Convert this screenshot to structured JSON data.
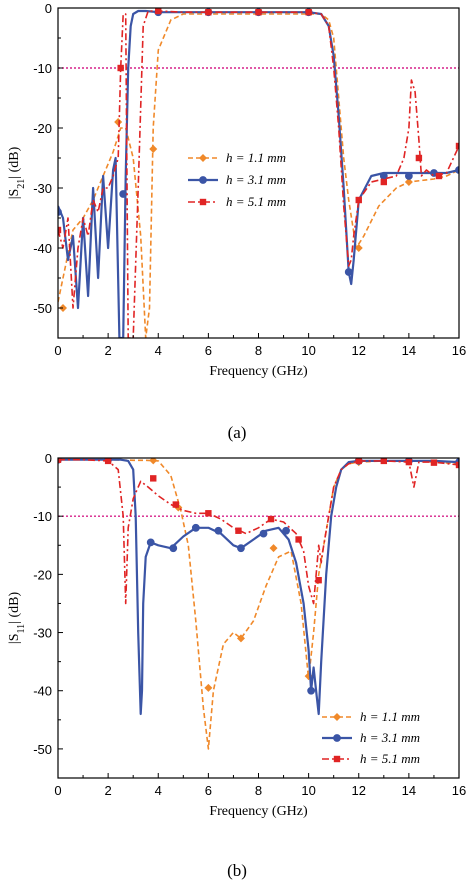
{
  "charts": [
    {
      "caption": "(a)",
      "chart_data": {
        "type": "line",
        "xlabel": "Frequency (GHz)",
        "ylabel_main": "|S",
        "ylabel_sub": "21",
        "ylabel_tail": "| (dB)",
        "xlim": [
          0,
          16
        ],
        "ylim": [
          -55,
          0
        ],
        "xticks": [
          0,
          2,
          4,
          6,
          8,
          10,
          12,
          14,
          16
        ],
        "yticks": [
          0,
          -10,
          -20,
          -30,
          -40,
          -50
        ],
        "reference_line": {
          "y": -10,
          "color": "#d6208a"
        },
        "legend_position": "center-right",
        "series": [
          {
            "name": "h = 1.1 mm",
            "color": "#f0892a",
            "style": "dashed",
            "marker": "diamond",
            "x": [
              0,
              0.3,
              0.6,
              1.0,
              1.4,
              1.8,
              2.2,
              2.5,
              2.7,
              3.0,
              3.3,
              3.5,
              3.65,
              3.8,
              4.0,
              4.5,
              5.0,
              6,
              7,
              8,
              9,
              10,
              10.5,
              10.8,
              11.0,
              11.2,
              11.4,
              11.6,
              11.9,
              12.2,
              12.8,
              13.5,
              14,
              15,
              15.5,
              16
            ],
            "y": [
              -49,
              -43,
              -37,
              -35,
              -32,
              -28,
              -24,
              -20,
              -20,
              -25,
              -38,
              -55,
              -50,
              -20,
              -7,
              -2,
              -1,
              -1,
              -1,
              -1,
              -1,
              -1,
              -1,
              -2,
              -5,
              -15,
              -25,
              -32,
              -40,
              -38,
              -33,
              -30,
              -29,
              -28.5,
              -28,
              -27
            ],
            "markers_x": [
              0.2,
              2.4,
              3.8,
              6,
              8,
              10,
              12,
              14,
              16
            ],
            "markers_y": [
              -50,
              -19,
              -23.5,
              -0.7,
              -0.7,
              -0.7,
              -40,
              -29,
              -27
            ]
          },
          {
            "name": "h = 3.1 mm",
            "color": "#3b55a6",
            "style": "solid",
            "marker": "circle",
            "x": [
              0,
              0.2,
              0.4,
              0.6,
              0.8,
              1.0,
              1.2,
              1.4,
              1.6,
              1.8,
              2.0,
              2.2,
              2.3,
              2.45,
              2.6,
              2.7,
              2.8,
              2.9,
              3.0,
              3.2,
              3.5,
              4,
              5,
              6,
              7,
              8,
              9,
              10,
              10.5,
              10.8,
              11.0,
              11.2,
              11.4,
              11.6,
              11.7,
              11.8,
              12.0,
              12.5,
              13,
              13.5,
              14,
              14.5,
              15,
              15.5,
              16
            ],
            "y": [
              -33,
              -35,
              -42,
              -38,
              -50,
              -35,
              -48,
              -30,
              -45,
              -28,
              -40,
              -27,
              -25,
              -55,
              -55,
              -28,
              -10,
              -3,
              -1,
              -0.5,
              -0.5,
              -0.7,
              -0.7,
              -0.7,
              -0.7,
              -0.7,
              -0.7,
              -0.7,
              -1,
              -3,
              -8,
              -18,
              -30,
              -44,
              -46,
              -42,
              -32,
              -28,
              -27.5,
              -27.5,
              -27.5,
              -27.5,
              -27.5,
              -27.5,
              -27
            ],
            "markers_x": [
              0,
              2.6,
              4,
              6,
              8,
              10,
              11.6,
              13,
              14,
              15,
              16
            ],
            "markers_y": [
              -34,
              -31,
              -0.7,
              -0.7,
              -0.7,
              -0.7,
              -44,
              -28,
              -28,
              -27.5,
              -27
            ]
          },
          {
            "name": "h = 5.1 mm",
            "color": "#e02424",
            "style": "dashdot",
            "marker": "square",
            "x": [
              0,
              0.2,
              0.4,
              0.6,
              0.8,
              1.0,
              1.2,
              1.4,
              1.6,
              1.8,
              2.0,
              2.2,
              2.4,
              2.5,
              2.6,
              2.7,
              2.8,
              3.0,
              3.2,
              3.4,
              3.6,
              4,
              5,
              6,
              7,
              8,
              9,
              10,
              10.5,
              10.8,
              11.0,
              11.2,
              11.4,
              11.6,
              11.7,
              11.8,
              12.0,
              12.5,
              13,
              13.5,
              13.8,
              14.0,
              14.1,
              14.25,
              14.4,
              14.5,
              14.7,
              15,
              15.5,
              16
            ],
            "y": [
              -37,
              -40,
              -35,
              -50,
              -40,
              -35,
              -38,
              -32,
              -34,
              -30,
              -30,
              -28,
              -25,
              -10,
              -1,
              -1,
              -55,
              -55,
              -30,
              -3,
              -0.5,
              -0.5,
              -0.7,
              -0.7,
              -0.7,
              -0.7,
              -0.7,
              -0.7,
              -1,
              -3,
              -10,
              -20,
              -33,
              -43,
              -42,
              -38,
              -32,
              -29,
              -28.5,
              -28,
              -25,
              -20,
              -12,
              -14,
              -22,
              -28,
              -27,
              -28,
              -27.5,
              -23
            ],
            "markers_x": [
              0,
              2.5,
              4,
              6,
              8,
              10,
              12,
              13,
              14.4,
              15.2,
              16
            ],
            "markers_y": [
              -37,
              -10,
              -0.5,
              -0.7,
              -0.7,
              -0.7,
              -32,
              -29,
              -25,
              -28,
              -23
            ]
          }
        ]
      }
    },
    {
      "caption": "(b)",
      "chart_data": {
        "type": "line",
        "xlabel": "Frequency (GHz)",
        "ylabel_main": "|S",
        "ylabel_sub": "11",
        "ylabel_tail": "| (dB)",
        "xlim": [
          0,
          16
        ],
        "ylim": [
          -55,
          0
        ],
        "xticks": [
          0,
          2,
          4,
          6,
          8,
          10,
          12,
          14,
          16
        ],
        "yticks": [
          0,
          -10,
          -20,
          -30,
          -40,
          -50
        ],
        "reference_line": {
          "y": -10,
          "color": "#d6208a"
        },
        "legend_position": "bottom-right",
        "series": [
          {
            "name": "h = 1.1 mm",
            "color": "#f0892a",
            "style": "dashed",
            "marker": "diamond",
            "x": [
              0,
              1,
              2,
              3,
              3.5,
              4.0,
              4.5,
              4.9,
              5.2,
              5.5,
              5.8,
              6.0,
              6.2,
              6.6,
              7.0,
              7.3,
              7.8,
              8.3,
              8.8,
              9.3,
              9.7,
              10.0,
              10.2,
              10.4,
              10.6,
              10.8,
              11.0,
              11.3,
              11.6,
              12,
              13,
              14,
              15,
              16
            ],
            "y": [
              -0.3,
              -0.3,
              -0.3,
              -0.4,
              -0.4,
              -0.5,
              -3,
              -9,
              -15,
              -28,
              -43,
              -50,
              -40,
              -32,
              -30,
              -31,
              -28,
              -22,
              -17,
              -16,
              -25,
              -38,
              -30,
              -20,
              -15,
              -10,
              -5,
              -2,
              -1,
              -0.7,
              -0.5,
              -0.5,
              -0.7,
              -1
            ],
            "markers_x": [
              0,
              2,
              3.8,
              4.8,
              6.0,
              7.3,
              8.6,
              10.0,
              12,
              14,
              16
            ],
            "markers_y": [
              -0.3,
              -0.3,
              -0.4,
              -8.5,
              -39.5,
              -31,
              -15.5,
              -37.5,
              -0.7,
              -0.6,
              -1
            ]
          },
          {
            "name": "h = 3.1 mm",
            "color": "#3b55a6",
            "style": "solid",
            "marker": "circle",
            "x": [
              0,
              1,
              2,
              2.5,
              2.8,
              3.0,
              3.1,
              3.2,
              3.3,
              3.35,
              3.4,
              3.5,
              3.7,
              4.0,
              4.5,
              5.0,
              5.5,
              6.0,
              6.5,
              7.0,
              7.3,
              7.8,
              8.3,
              8.8,
              9.2,
              9.5,
              9.8,
              10.0,
              10.1,
              10.2,
              10.3,
              10.4,
              10.5,
              10.7,
              10.9,
              11.1,
              11.3,
              11.6,
              12,
              13,
              14,
              15,
              16
            ],
            "y": [
              -0.3,
              -0.3,
              -0.3,
              -0.3,
              -0.5,
              -2,
              -10,
              -30,
              -44,
              -40,
              -25,
              -17,
              -14.5,
              -15,
              -15.5,
              -13.5,
              -12,
              -12,
              -13,
              -15,
              -15.5,
              -14,
              -12.5,
              -12,
              -14,
              -18,
              -25,
              -33,
              -40,
              -36,
              -40,
              -44,
              -35,
              -20,
              -10,
              -5,
              -2,
              -0.7,
              -0.5,
              -0.5,
              -0.5,
              -0.5,
              -0.7
            ],
            "markers_x": [
              0,
              2,
              3.7,
              4.6,
              5.5,
              6.4,
              7.3,
              8.2,
              9.1,
              10.1,
              12,
              14,
              16
            ],
            "markers_y": [
              -0.3,
              -0.3,
              -14.5,
              -15.5,
              -12,
              -12.5,
              -15.5,
              -13,
              -12.5,
              -40,
              -0.5,
              -0.5,
              -0.7
            ]
          },
          {
            "name": "h = 5.1 mm",
            "color": "#e02424",
            "style": "dashdot",
            "marker": "square",
            "x": [
              0,
              1,
              2,
              2.4,
              2.6,
              2.7,
              2.8,
              3.0,
              3.3,
              3.6,
              4.0,
              4.5,
              5.0,
              5.5,
              6.0,
              6.5,
              7.0,
              7.5,
              8.0,
              8.5,
              9.0,
              9.5,
              9.8,
              10.0,
              10.2,
              10.4,
              10.5,
              10.6,
              10.8,
              11.0,
              11.3,
              11.6,
              12,
              13,
              14,
              14.2,
              14.4,
              15,
              16
            ],
            "y": [
              -0.3,
              -0.3,
              -0.5,
              -2,
              -10,
              -25,
              -12,
              -7,
              -4,
              -5,
              -6.5,
              -8,
              -9,
              -9.5,
              -9.5,
              -10.5,
              -12,
              -13,
              -12,
              -10.5,
              -11,
              -13,
              -16,
              -22,
              -25,
              -15,
              -18,
              -15,
              -10,
              -5,
              -2,
              -1,
              -0.5,
              -0.5,
              -0.7,
              -5,
              -0.7,
              -0.7,
              -1.2
            ],
            "markers_x": [
              0,
              2,
              3.8,
              4.7,
              6.0,
              7.2,
              8.5,
              9.6,
              10.4,
              12,
              13,
              14,
              15,
              16
            ],
            "markers_y": [
              -0.3,
              -0.5,
              -3.5,
              -8,
              -9.5,
              -12.5,
              -10.5,
              -14,
              -21,
              -0.5,
              -0.5,
              -0.7,
              -0.8,
              -1.2
            ]
          }
        ]
      }
    }
  ]
}
